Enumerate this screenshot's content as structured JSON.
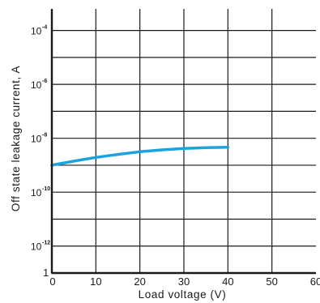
{
  "chart_data": {
    "type": "line",
    "xlabel": "Load voltage (V)",
    "ylabel": "Off state leakage current, A",
    "x_ticks": [
      "0",
      "10",
      "20",
      "30",
      "40",
      "50",
      "60"
    ],
    "xlim": [
      0,
      60
    ],
    "y_scale": "log",
    "ylim_log10": [
      -13,
      -3.2
    ],
    "y_ticks": [
      {
        "base": "10",
        "exp": "-4",
        "log10": -4
      },
      {
        "base": "10",
        "exp": "-6",
        "log10": -6
      },
      {
        "base": "10",
        "exp": "-8",
        "log10": -8
      },
      {
        "base": "10",
        "exp": "-10",
        "log10": -10
      },
      {
        "base": "10",
        "exp": "-12",
        "log10": -12
      }
    ],
    "y_origin_label": "1",
    "grid": true,
    "series": [
      {
        "color": "#1aa3e0",
        "x": [
          0,
          5,
          10,
          15,
          20,
          25,
          30,
          35,
          40
        ],
        "y_log10": [
          -9.0,
          -8.85,
          -8.71,
          -8.6,
          -8.5,
          -8.43,
          -8.38,
          -8.35,
          -8.33
        ]
      }
    ]
  }
}
